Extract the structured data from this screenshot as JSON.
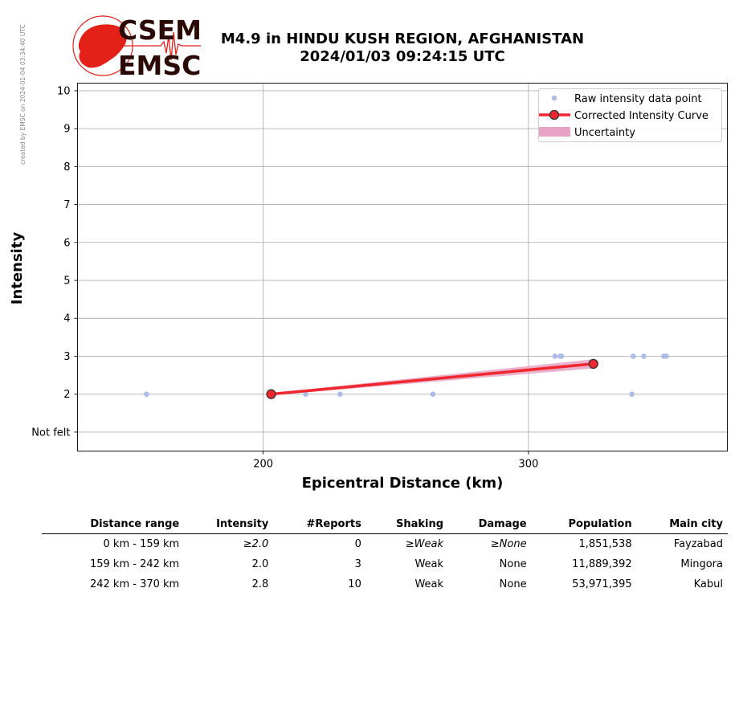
{
  "side_note": "created by EMSC on 2024-01-04 03:34:40 UTC",
  "logo": {
    "text_top": "CSEM",
    "text_bottom": "EMSC",
    "color": "#e32119",
    "text_color": "#2b0a06"
  },
  "title": {
    "line1": "M4.9 in HINDU KUSH REGION, AFGHANISTAN",
    "line2": "2024/01/03 09:24:15 UTC"
  },
  "chart_data": {
    "type": "scatter",
    "xlabel": "Epicentral Distance (km)",
    "ylabel": "Intensity",
    "xlim": [
      130,
      375
    ],
    "ylim": [
      0.5,
      10.2
    ],
    "x_ticks": [
      200,
      300
    ],
    "y_ticks": [
      1,
      2,
      3,
      4,
      5,
      6,
      7,
      8,
      9,
      10
    ],
    "y_tick_labels": [
      "Not felt",
      "2",
      "3",
      "4",
      "5",
      "6",
      "7",
      "8",
      "9",
      "10"
    ],
    "grid": true,
    "legend_position": "top-right",
    "legend": [
      "Raw intensity data point",
      "Corrected Intensity Curve",
      "Uncertainty"
    ],
    "colors": {
      "raw": "#aebbe6",
      "curve": "#f0272e",
      "marker_edge": "#333333",
      "uncertainty": "#e8a2c3"
    },
    "series": [
      {
        "name": "Raw intensity data point",
        "points": [
          [
            156,
            2
          ],
          [
            216,
            2
          ],
          [
            229,
            2
          ],
          [
            264,
            2
          ],
          [
            310,
            3
          ],
          [
            312,
            3
          ],
          [
            312.5,
            3
          ],
          [
            339,
            2
          ],
          [
            339.5,
            3
          ],
          [
            343.5,
            3
          ],
          [
            351,
            3
          ],
          [
            352,
            3
          ]
        ]
      },
      {
        "name": "Corrected Intensity Curve",
        "points": [
          [
            203,
            2.0
          ],
          [
            324.5,
            2.8
          ]
        ]
      },
      {
        "name": "Uncertainty",
        "band": [
          [
            203,
            1.97,
            2.03
          ],
          [
            324.5,
            2.68,
            2.92
          ]
        ]
      }
    ]
  },
  "table": {
    "headers": [
      "Distance range",
      "Intensity",
      "#Reports",
      "Shaking",
      "Damage",
      "Population",
      "Main city"
    ],
    "rows": [
      [
        "0 km -  159 km",
        "≥2.0",
        "0",
        "≥Weak",
        "≥None",
        "1,851,538",
        "Fayzabad"
      ],
      [
        "159 km -  242 km",
        "2.0",
        "3",
        "Weak",
        "None",
        "11,889,392",
        "Mingora"
      ],
      [
        "242 km -  370 km",
        "2.8",
        "10",
        "Weak",
        "None",
        "53,971,395",
        "Kabul"
      ]
    ]
  }
}
